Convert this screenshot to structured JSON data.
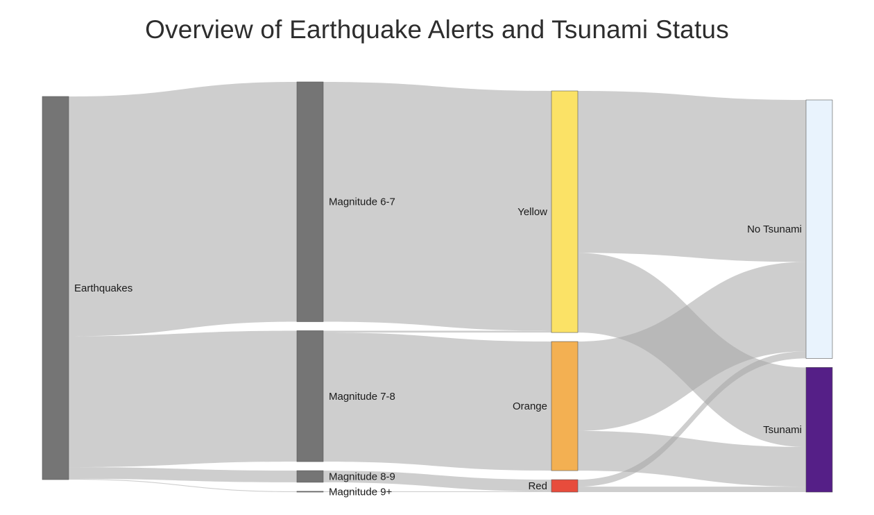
{
  "chart_data": {
    "type": "sankey",
    "title": "Overview of Earthquake Alerts and Tsunami Status",
    "nodes": [
      {
        "id": "eq",
        "label": "Earthquakes",
        "column": 0,
        "color": "#757575"
      },
      {
        "id": "m67",
        "label": "Magnitude 6-7",
        "column": 1,
        "color": "#757575"
      },
      {
        "id": "m78",
        "label": "Magnitude 7-8",
        "column": 1,
        "color": "#757575"
      },
      {
        "id": "m89",
        "label": "Magnitude 8-9",
        "column": 1,
        "color": "#757575"
      },
      {
        "id": "m9",
        "label": "Magnitude 9+",
        "column": 1,
        "color": "#757575"
      },
      {
        "id": "yellow",
        "label": "Yellow",
        "column": 2,
        "color": "#fbe266"
      },
      {
        "id": "orange",
        "label": "Orange",
        "column": 2,
        "color": "#f3b052"
      },
      {
        "id": "red",
        "label": "Red",
        "column": 2,
        "color": "#e74c3c"
      },
      {
        "id": "notsu",
        "label": "No Tsunami",
        "column": 3,
        "color": "#e9f3fd"
      },
      {
        "id": "tsu",
        "label": "Tsunami",
        "column": 3,
        "color": "#551f87"
      }
    ],
    "links": [
      {
        "source": "eq",
        "target": "m67",
        "value": 185
      },
      {
        "source": "eq",
        "target": "m78",
        "value": 101
      },
      {
        "source": "eq",
        "target": "m89",
        "value": 9
      },
      {
        "source": "eq",
        "target": "m9",
        "value": 0.6
      },
      {
        "source": "m67",
        "target": "yellow",
        "value": 185
      },
      {
        "source": "m78",
        "target": "yellow",
        "value": 1.4
      },
      {
        "source": "m78",
        "target": "orange",
        "value": 99.6
      },
      {
        "source": "m89",
        "target": "red",
        "value": 9
      },
      {
        "source": "m9",
        "target": "red",
        "value": 0.6
      },
      {
        "source": "yellow",
        "target": "notsu",
        "value": 125
      },
      {
        "source": "yellow",
        "target": "tsu",
        "value": 61.4
      },
      {
        "source": "orange",
        "target": "notsu",
        "value": 69
      },
      {
        "source": "orange",
        "target": "tsu",
        "value": 30.6
      },
      {
        "source": "red",
        "target": "notsu",
        "value": 5.4
      },
      {
        "source": "red",
        "target": "tsu",
        "value": 4.2
      }
    ]
  }
}
